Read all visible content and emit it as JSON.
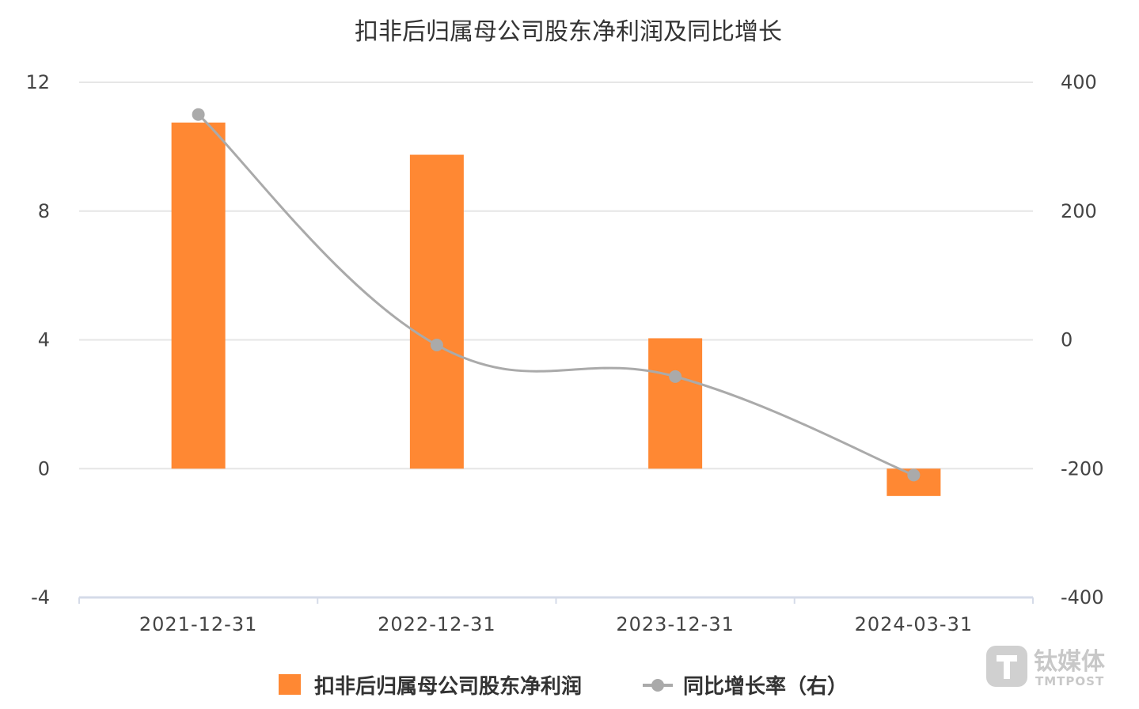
{
  "chart_data": {
    "type": "bar",
    "title": "扣非后归属母公司股东净利润及同比增长",
    "categories": [
      "2021-12-31",
      "2022-12-31",
      "2023-12-31",
      "2024-03-31"
    ],
    "series": [
      {
        "name": "扣非后归属母公司股东净利润",
        "type": "bar",
        "axis": "left",
        "color": "#ff8833",
        "values": [
          10.75,
          9.75,
          4.05,
          -0.85
        ]
      },
      {
        "name": "同比增长率（右）",
        "type": "line",
        "axis": "right",
        "color": "#aaaaaa",
        "values": [
          350,
          -8,
          -57,
          -210
        ]
      }
    ],
    "y_left": {
      "min": -4,
      "max": 12,
      "ticks": [
        "12",
        "8",
        "4",
        "0",
        "-4"
      ],
      "tick_values": [
        12,
        8,
        4,
        0,
        -4
      ]
    },
    "y_right": {
      "min": -400,
      "max": 400,
      "ticks": [
        "400",
        "200",
        "0",
        "-200",
        "-400"
      ],
      "tick_values": [
        400,
        200,
        0,
        -200,
        -400
      ]
    },
    "grid": true,
    "legend_position": "bottom"
  },
  "watermark": {
    "main": "钛媒体",
    "sub": "TMTPOST",
    "icon": "tmtpost-logo-icon"
  }
}
